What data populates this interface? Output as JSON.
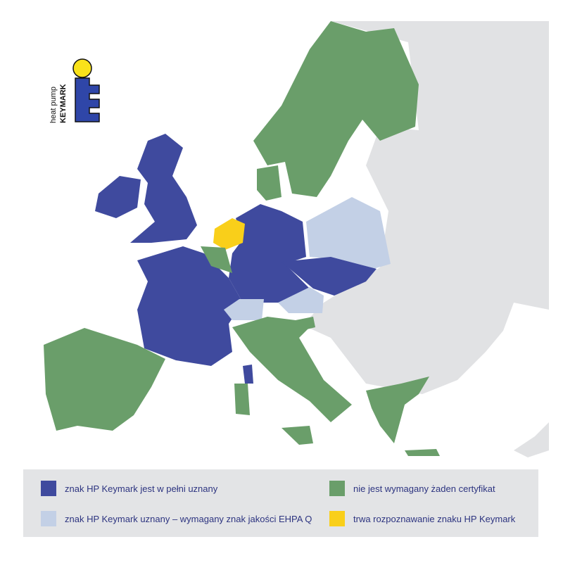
{
  "colors": {
    "full": "#3f4a9e",
    "ehpa": "#c3d0e6",
    "none": "#6a9e6a",
    "pending": "#f9cf1a",
    "other": "#e1e2e4"
  },
  "logo": {
    "line1": "heat pump",
    "line2": "KEYMARK"
  },
  "legend": [
    {
      "key": "full",
      "label": "znak HP Keymark jest w pełni uznany"
    },
    {
      "key": "none",
      "label": "nie jest wymagany żaden certyfikat"
    },
    {
      "key": "ehpa",
      "label": "znak HP Keymark uznany – wymagany znak jakości EHPA Q"
    },
    {
      "key": "pending",
      "label": "trwa rozpoznawanie znaku HP Keymark"
    }
  ]
}
